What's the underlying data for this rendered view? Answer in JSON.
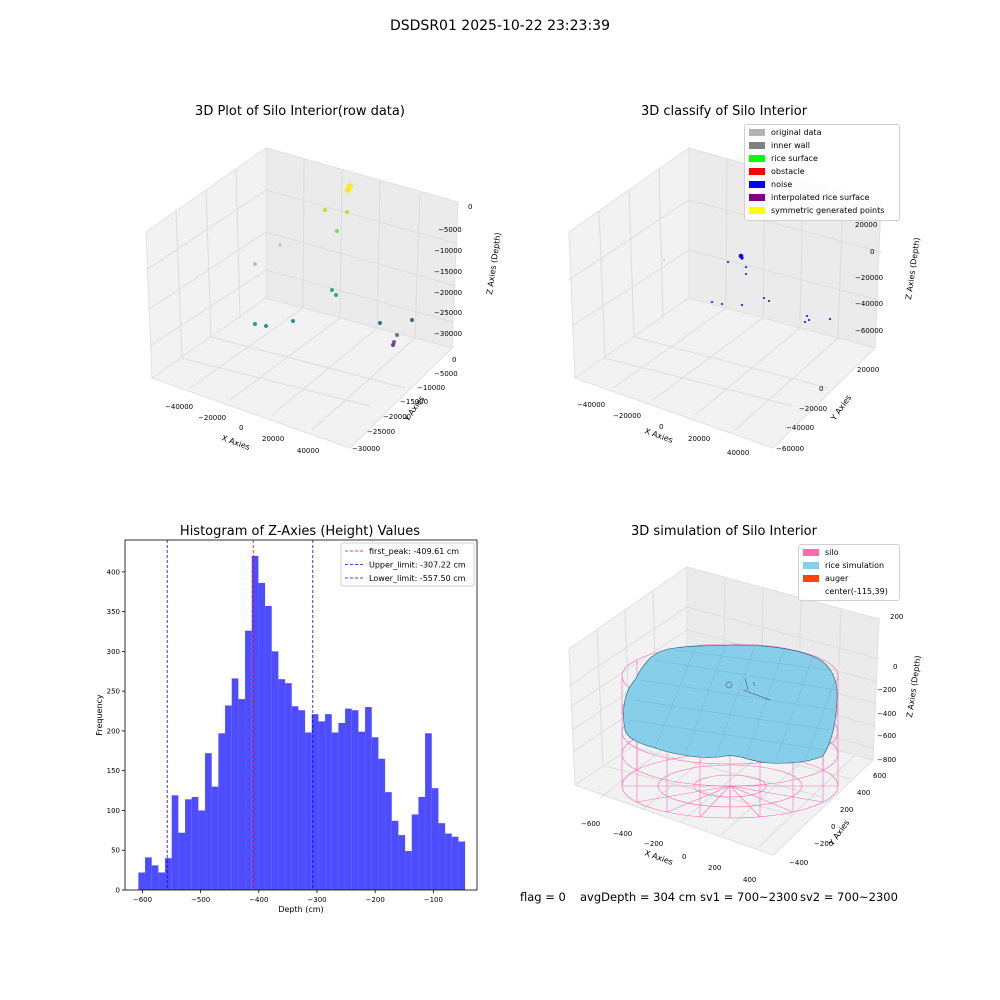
{
  "suptitle": "DSDSR01 2025-10-22 23:23:39",
  "panels": {
    "raw": {
      "title": "3D Plot of Silo Interior(row data)",
      "xlabel": "X Axies",
      "ylabel": "Y Axies",
      "zlabel": "Z Axies (Depth)",
      "xticks": [
        "−40000",
        "−20000",
        "0",
        "20000",
        "40000"
      ],
      "yticks": [
        "0",
        "−5000",
        "−10000",
        "−15000",
        "−20000",
        "−25000",
        "−30000"
      ],
      "zticks": [
        "0",
        "−5000",
        "−10000",
        "−15000",
        "−20000",
        "−25000",
        "−30000"
      ]
    },
    "classify": {
      "title": "3D classify of Silo Interior",
      "xlabel": "X Axies",
      "ylabel": "Y Axies",
      "zlabel": "Z Axies (Depth)",
      "xticks": [
        "−40000",
        "−20000",
        "0",
        "20000",
        "40000"
      ],
      "yticks": [
        "20000",
        "0",
        "−20000",
        "−40000",
        "−60000"
      ],
      "zticks": [
        "20000",
        "0",
        "−20000",
        "−40000",
        "−60000"
      ],
      "legend": [
        {
          "label": "original data",
          "color": "#b3b3b3"
        },
        {
          "label": "inner wall",
          "color": "#808080"
        },
        {
          "label": "rice surface",
          "color": "#00ff00"
        },
        {
          "label": "obstacle",
          "color": "#ff0000"
        },
        {
          "label": "noise",
          "color": "#0000ff"
        },
        {
          "label": "interpolated rice surface",
          "color": "#800080"
        },
        {
          "label": "symmetric generated points",
          "color": "#ffff00"
        }
      ]
    },
    "simulation": {
      "title": "3D simulation of Silo Interior",
      "xlabel": "X Axies",
      "ylabel": "Y Axies",
      "zlabel": "Z Axies (Depth)",
      "xticks": [
        "−600",
        "−400",
        "−200",
        "0",
        "200",
        "400"
      ],
      "yticks": [
        "600",
        "400",
        "200",
        "0",
        "−200",
        "−400"
      ],
      "zticks": [
        "200",
        "0",
        "−200",
        "−400",
        "−600",
        "−800"
      ],
      "legend": [
        {
          "label": "silo",
          "color": "#ff69b4"
        },
        {
          "label": "rice simulation",
          "color": "#87ceeb"
        },
        {
          "label": "auger",
          "color": "#ff4500"
        },
        {
          "label": "center(-115,39)",
          "color": ""
        }
      ]
    }
  },
  "footer": {
    "flag": "flag = 0",
    "avg": "avgDepth = 304 cm",
    "sv1": "sv1 = 700~2300",
    "sv2": "sv2 = 700~2300"
  },
  "chart_data": [
    {
      "type": "scatter",
      "title": "3D Plot of Silo Interior(row data)",
      "xlabel": "X Axies",
      "ylabel": "Y Axies",
      "zlabel": "Z Axies (Depth)",
      "xlim": [
        -45000,
        45000
      ],
      "ylim": [
        -30000,
        2000
      ],
      "zlim": [
        -32000,
        1000
      ],
      "colors": "depth colormap (viridis)",
      "grid": true
    },
    {
      "type": "scatter",
      "title": "3D classify of Silo Interior",
      "xlabel": "X Axies",
      "ylabel": "Y Axies",
      "zlabel": "Z Axies (Depth)",
      "xlim": [
        -45000,
        45000
      ],
      "ylim": [
        -60000,
        20000
      ],
      "zlim": [
        -60000,
        20000
      ],
      "legend_position": "top-right",
      "series": [
        {
          "name": "original data"
        },
        {
          "name": "inner wall"
        },
        {
          "name": "rice surface"
        },
        {
          "name": "obstacle"
        },
        {
          "name": "noise"
        },
        {
          "name": "interpolated rice surface"
        },
        {
          "name": "symmetric generated points"
        }
      ],
      "grid": true
    },
    {
      "type": "bar",
      "title": "Histogram of Z-Axies (Height) Values",
      "xlabel": "Depth (cm)",
      "ylabel": "Frequency",
      "xlim": [
        -630,
        -25
      ],
      "ylim": [
        0,
        440
      ],
      "xticks": [
        -600,
        -500,
        -400,
        -300,
        -200,
        -100
      ],
      "yticks": [
        0,
        50,
        100,
        150,
        200,
        250,
        300,
        350,
        400
      ],
      "bin_start": -607,
      "bin_width": 11.46,
      "values": [
        22,
        41,
        31,
        22,
        40,
        119,
        72,
        114,
        117,
        100,
        172,
        130,
        197,
        232,
        266,
        240,
        326,
        420,
        386,
        357,
        300,
        265,
        260,
        231,
        226,
        198,
        221,
        212,
        221,
        198,
        210,
        228,
        226,
        199,
        230,
        192,
        165,
        123,
        87,
        69,
        49,
        95,
        117,
        197,
        128,
        84,
        71,
        67,
        61
      ],
      "lines": [
        {
          "label": "first_peak: -409.61 cm",
          "x": -409.61,
          "color": "#ff0000"
        },
        {
          "label": "Upper_limit: -307.22 cm",
          "x": -307.22,
          "color": "#0000ff"
        },
        {
          "label": "Lower_limit: -557.50 cm",
          "x": -557.5,
          "color": "#0000ff"
        }
      ],
      "legend_position": "top-right",
      "bar_color": "#4d4dff"
    },
    {
      "type": "surface",
      "title": "3D simulation of Silo Interior",
      "xlabel": "X Axies",
      "ylabel": "Y Axies",
      "zlabel": "Z Axies (Depth)",
      "xlim": [
        -700,
        450
      ],
      "ylim": [
        -450,
        650
      ],
      "zlim": [
        -850,
        300
      ],
      "legend_position": "top-right",
      "series": [
        {
          "name": "silo"
        },
        {
          "name": "rice simulation"
        },
        {
          "name": "auger"
        },
        {
          "name": "center(-115,39)"
        }
      ],
      "grid": true
    }
  ]
}
